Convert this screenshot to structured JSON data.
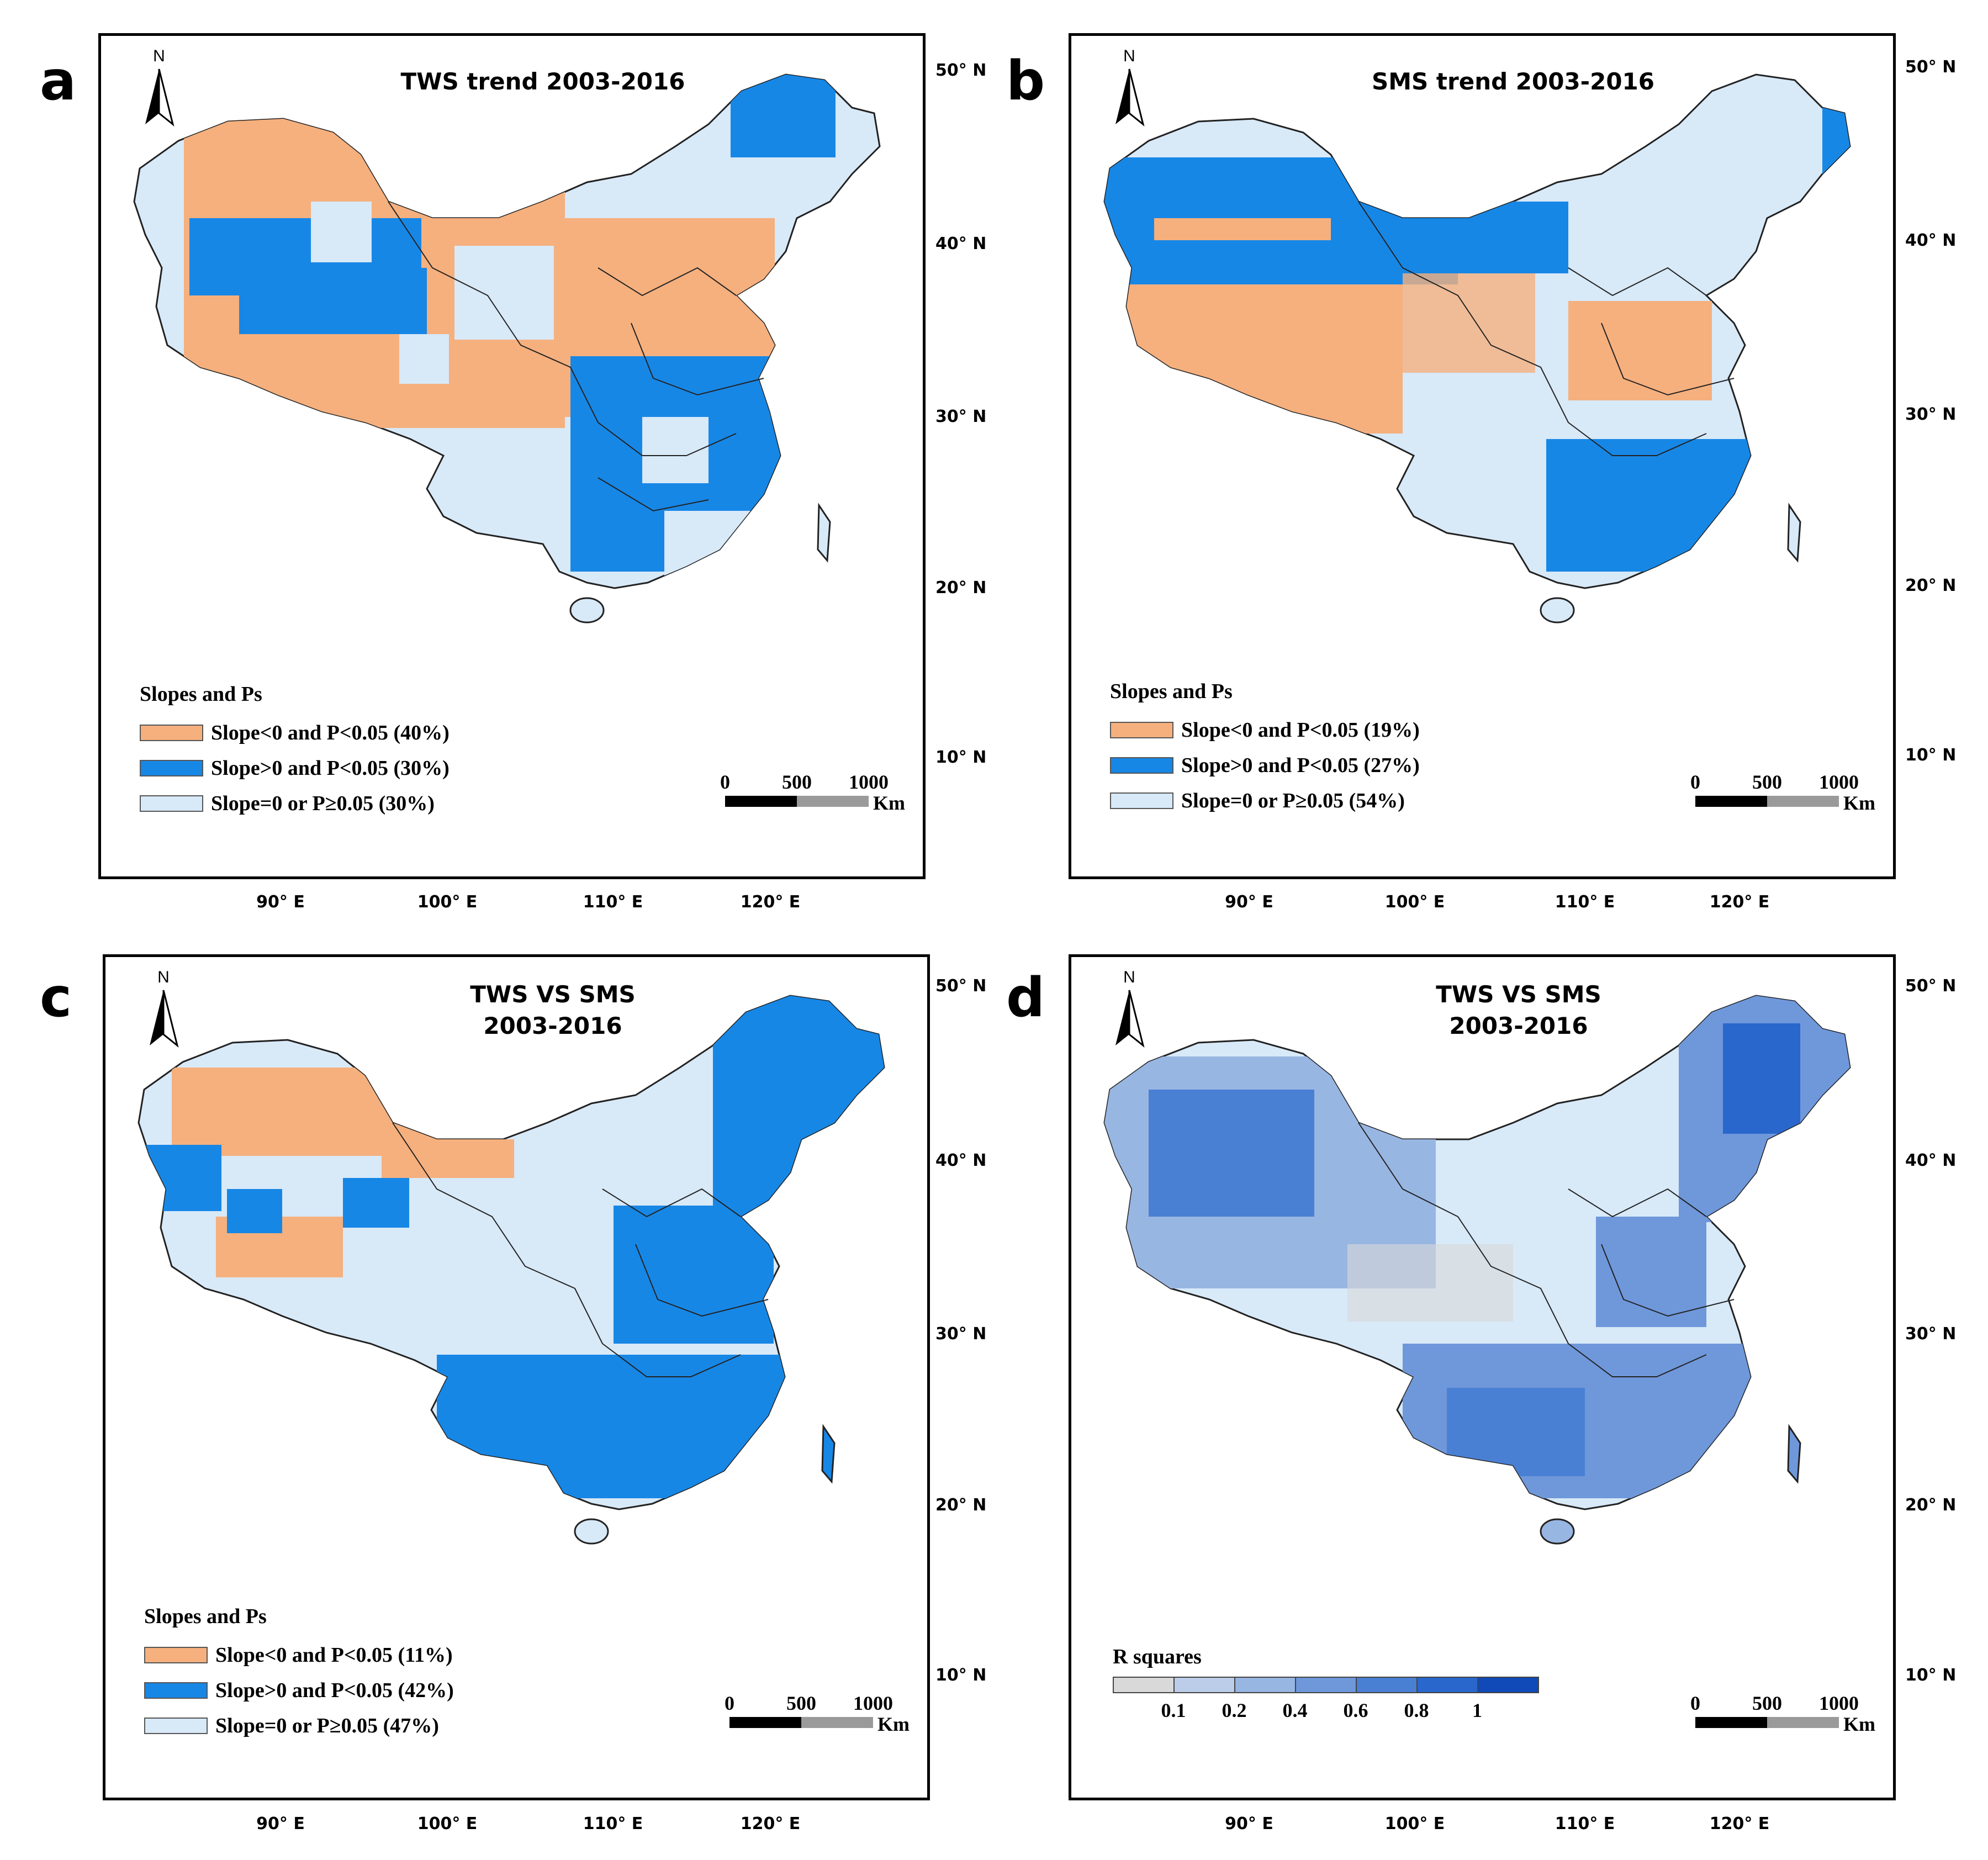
{
  "colors": {
    "negative": "#f5b07e",
    "positive": "#1787e6",
    "neutral": "#d8e9f8",
    "boundary": "#222222",
    "rsq_scale": [
      "#d9d9d9",
      "#bccdea",
      "#98b6e2",
      "#6f98db",
      "#4a80d4",
      "#2a67cc",
      "#1049b8"
    ]
  },
  "common": {
    "north_label": "N",
    "lat_labels": [
      "50° N",
      "40° N",
      "30° N",
      "20° N",
      "10° N"
    ],
    "lon_labels": [
      "90° E",
      "100° E",
      "110° E",
      "120° E"
    ],
    "scale_labels": [
      "0",
      "500",
      "1000"
    ],
    "scale_unit": "Km",
    "legend_title": "Slopes and Ps"
  },
  "panels": [
    {
      "letter": "a",
      "title_lines": [
        "TWS trend 2003-2016"
      ],
      "legend": [
        {
          "label": "Slope<0 and P<0.05 (40%)",
          "color": "#f5b07e"
        },
        {
          "label": "Slope>0 and P<0.05 (30%)",
          "color": "#1787e6"
        },
        {
          "label": "Slope=0 or P≥0.05    (30%)",
          "color": "#d8e9f8"
        }
      ]
    },
    {
      "letter": "b",
      "title_lines": [
        "SMS trend 2003-2016"
      ],
      "legend": [
        {
          "label": "Slope<0 and P<0.05 (19%)",
          "color": "#f5b07e"
        },
        {
          "label": "Slope>0 and P<0.05 (27%)",
          "color": "#1787e6"
        },
        {
          "label": "Slope=0 or P≥0.05 (54%)",
          "color": "#d8e9f8"
        }
      ]
    },
    {
      "letter": "c",
      "title_lines": [
        "TWS VS SMS",
        "2003-2016"
      ],
      "legend": [
        {
          "label": "Slope<0 and P<0.05 (11%)",
          "color": "#f5b07e"
        },
        {
          "label": "Slope>0 and P<0.05 (42%)",
          "color": "#1787e6"
        },
        {
          "label": "Slope=0 or P≥0.05    (47%)",
          "color": "#d8e9f8"
        }
      ]
    },
    {
      "letter": "d",
      "title_lines": [
        "TWS VS SMS",
        "2003-2016"
      ],
      "rsq_title": "R squares",
      "rsq_ticks": [
        "0.1",
        "0.2",
        "0.4",
        "0.6",
        "0.8",
        "1"
      ]
    }
  ]
}
